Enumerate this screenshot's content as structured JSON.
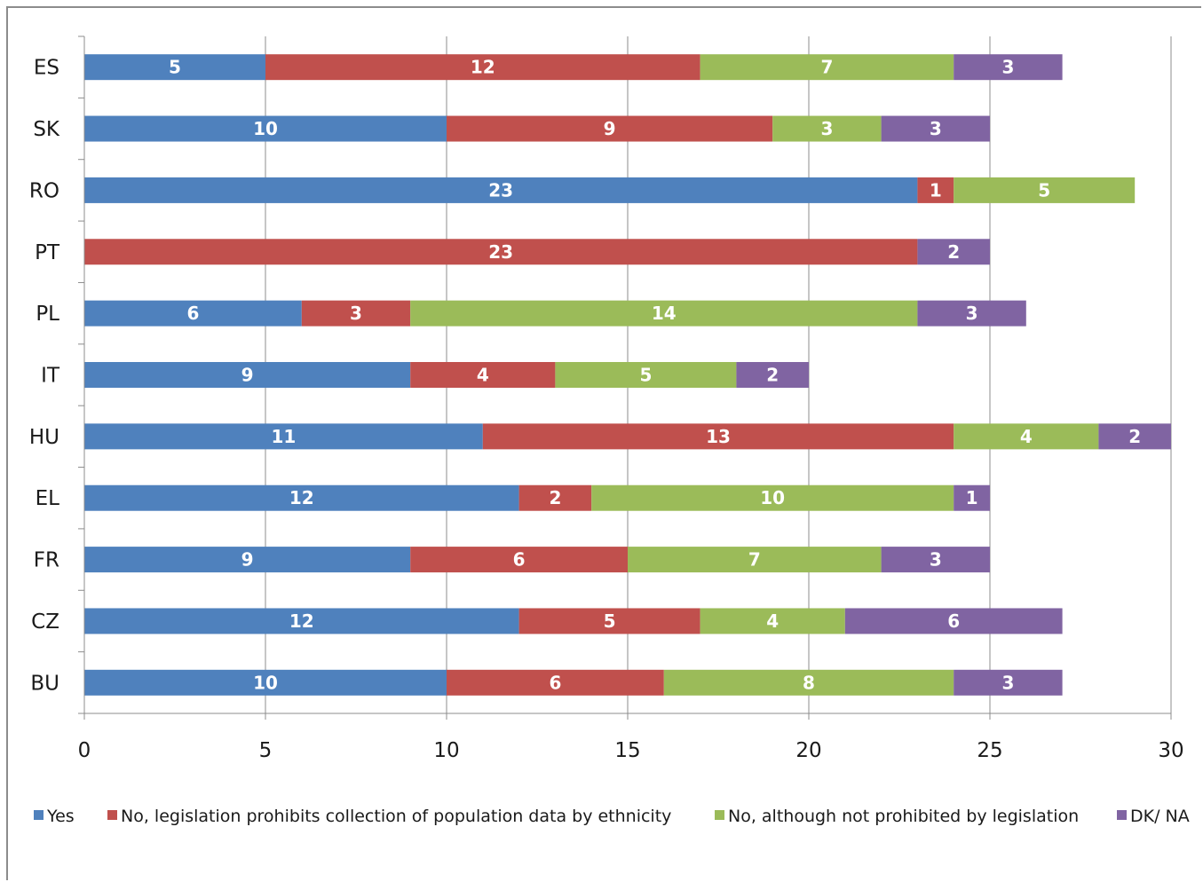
{
  "chart_data": {
    "type": "bar",
    "orientation": "horizontal",
    "stacked": true,
    "categories": [
      "ES",
      "SK",
      "RO",
      "PT",
      "PL",
      "IT",
      "HU",
      "EL",
      "FR",
      "CZ",
      "BU"
    ],
    "series": [
      {
        "name": "Yes",
        "color": "#4f81bd",
        "values": [
          5,
          10,
          23,
          0,
          6,
          9,
          11,
          12,
          9,
          12,
          10
        ]
      },
      {
        "name": "No, legislation prohibits collection of population data by ethnicity",
        "color": "#c0504d",
        "values": [
          12,
          9,
          1,
          23,
          3,
          4,
          13,
          2,
          6,
          5,
          6
        ]
      },
      {
        "name": "No, although not prohibited by legislation",
        "color": "#9bbb59",
        "values": [
          7,
          3,
          5,
          0,
          14,
          5,
          4,
          10,
          7,
          4,
          8
        ]
      },
      {
        "name": "DK/ NA",
        "color": "#8064a2",
        "values": [
          3,
          3,
          0,
          2,
          3,
          2,
          2,
          1,
          3,
          6,
          3
        ]
      }
    ],
    "xlim": [
      0,
      30
    ],
    "xticks": [
      "0",
      "5",
      "10",
      "15",
      "20",
      "25",
      "30"
    ],
    "grid": "vertical",
    "legend": "bottom"
  }
}
